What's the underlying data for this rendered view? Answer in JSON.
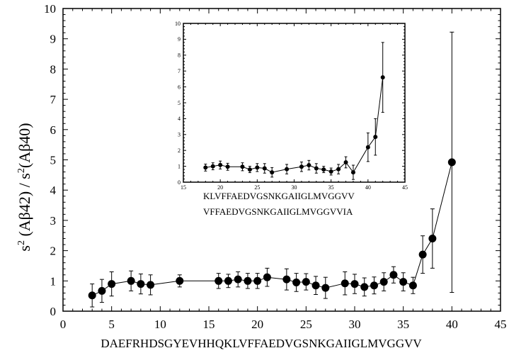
{
  "chart_data": [
    {
      "type": "scatter",
      "ylabel_parts": [
        "s",
        "2",
        " (Aβ42) / s",
        "2",
        "(Aβ40)"
      ],
      "xlabel": "DAEFRHDSGYEVHHQKLVFFAEDVGSNKGAIIGLMVGGVV",
      "xlim": [
        0,
        45
      ],
      "ylim": [
        0,
        10
      ],
      "xticks": [
        0,
        5,
        10,
        15,
        20,
        25,
        30,
        35,
        40,
        45
      ],
      "yticks": [
        0,
        1,
        2,
        3,
        4,
        5,
        6,
        7,
        8,
        9,
        10
      ],
      "grid": false,
      "x": [
        3,
        4,
        5,
        7,
        8,
        9,
        12,
        16,
        17,
        18,
        19,
        20,
        21,
        23,
        24,
        25,
        26,
        27,
        29,
        30,
        31,
        32,
        33,
        34,
        35,
        36,
        37,
        38,
        40
      ],
      "y": [
        0.52,
        0.67,
        0.9,
        1.0,
        0.9,
        0.87,
        1.0,
        1.0,
        1.0,
        1.05,
        1.0,
        1.0,
        1.12,
        1.05,
        0.95,
        0.97,
        0.85,
        0.77,
        0.92,
        0.9,
        0.8,
        0.85,
        0.97,
        1.2,
        0.97,
        0.85,
        1.87,
        2.4,
        4.92
      ],
      "yerr": [
        0.38,
        0.38,
        0.4,
        0.33,
        0.33,
        0.33,
        0.2,
        0.25,
        0.22,
        0.25,
        0.25,
        0.25,
        0.3,
        0.35,
        0.3,
        0.27,
        0.3,
        0.35,
        0.38,
        0.32,
        0.3,
        0.28,
        0.3,
        0.27,
        0.3,
        0.27,
        0.62,
        0.98,
        4.3
      ]
    },
    {
      "type": "scatter",
      "xlabel_lines": [
        "KLVFFAEDVGSNKGAIIGLMVGGVV",
        "VFFAEDVGSNKGAIIGLMVGGVVIA"
      ],
      "xlim": [
        15,
        45
      ],
      "ylim": [
        0,
        10
      ],
      "xticks": [
        15,
        20,
        25,
        30,
        35,
        40,
        45
      ],
      "yticks": [
        0,
        1,
        2,
        3,
        4,
        5,
        6,
        7,
        8,
        9,
        10
      ],
      "grid": false,
      "x": [
        18,
        19,
        20,
        21,
        23,
        24,
        25,
        26,
        27,
        29,
        31,
        32,
        33,
        34,
        35,
        36,
        37,
        38,
        40,
        41,
        42
      ],
      "y": [
        0.92,
        1.0,
        1.08,
        0.97,
        0.97,
        0.8,
        0.92,
        0.87,
        0.62,
        0.82,
        0.97,
        1.07,
        0.87,
        0.8,
        0.67,
        0.82,
        1.25,
        0.62,
        2.2,
        2.85,
        6.6
      ],
      "yerr": [
        0.22,
        0.22,
        0.25,
        0.22,
        0.25,
        0.2,
        0.25,
        0.3,
        0.3,
        0.3,
        0.3,
        0.3,
        0.3,
        0.2,
        0.22,
        0.3,
        0.35,
        0.45,
        0.9,
        1.15,
        2.2
      ]
    }
  ]
}
